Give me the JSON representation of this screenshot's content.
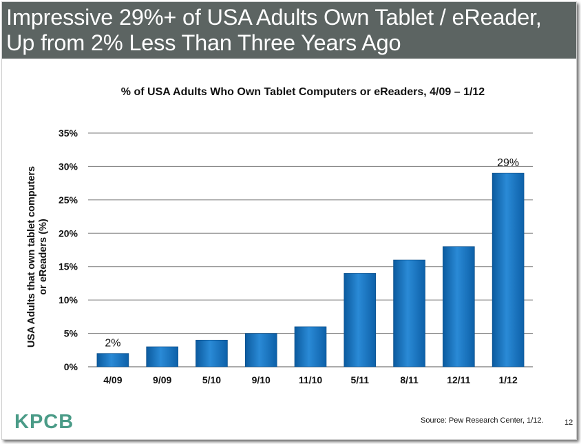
{
  "header": {
    "title": "Impressive 29%+ of USA Adults Own Tablet / eReader,\nUp from 2% Less Than Three Years Ago",
    "background": "#5c6462"
  },
  "footer": {
    "logo": "KPCB",
    "source": "Source: Pew Research Center, 1/12.",
    "page_number": "12"
  },
  "chart_data": {
    "type": "bar",
    "title": "% of USA Adults Who Own Tablet Computers or eReaders, 4/09 – 1/12",
    "xlabel": "",
    "ylabel": "USA Adults that own tablet computers or eReaders (%)",
    "ylabel_lines": [
      "USA Adults that own tablet computers",
      "or eReaders (%)"
    ],
    "categories": [
      "4/09",
      "9/09",
      "5/10",
      "9/10",
      "11/10",
      "5/11",
      "8/11",
      "12/11",
      "1/12"
    ],
    "values": [
      2,
      3,
      4,
      5,
      6,
      14,
      16,
      18,
      29
    ],
    "ylim": [
      0,
      35
    ],
    "yticks": [
      0,
      5,
      10,
      15,
      20,
      25,
      30,
      35
    ],
    "ytick_labels": [
      "0%",
      "5%",
      "10%",
      "15%",
      "20%",
      "25%",
      "30%",
      "35%"
    ],
    "data_labels": [
      {
        "category": "4/09",
        "text": "2%"
      },
      {
        "category": "1/12",
        "text": "29%"
      }
    ],
    "grid": true,
    "legend": "none",
    "bar_color": "#1b78c4"
  }
}
